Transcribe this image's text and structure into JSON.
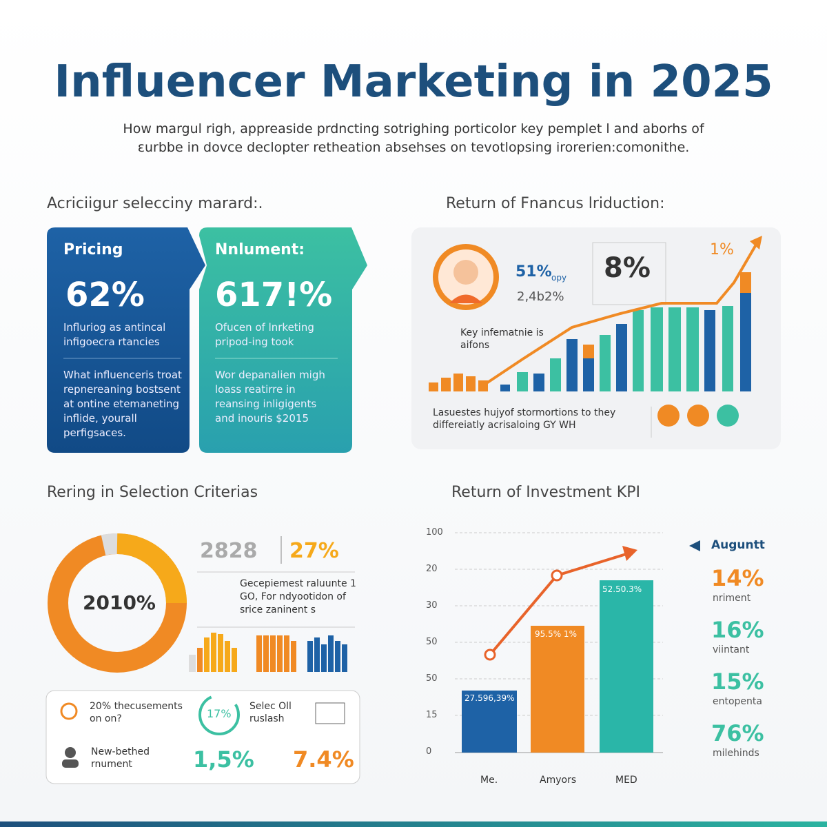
{
  "header": {
    "title": "Influencer Marketing in 2025",
    "subtitle": [
      "How margul righ, appreaside prdncting sotrighing porticolor key pemplet l and aborhs of",
      "ɛurbbe in dovce declopter retheation absehses on tevotlopsing irorerien:comonithe."
    ]
  },
  "top_left": {
    "heading": "Acriciigur selecciny marard:.",
    "cards": [
      {
        "title": "Pricing",
        "value": "62%",
        "text": "Influriog as antincal infigoecra rtancies",
        "body": "What influenceris troat repnereaning bostsent at ontine etemaneting inflide, yourall perfigsaces."
      },
      {
        "title": "Nnlument:",
        "value": "617!%",
        "text": "Ofucen of lnrketing pripod-ing took",
        "body": "Wor depanalien migh loass reatirre in reansing inligigents and inouris $2015"
      }
    ]
  },
  "top_right": {
    "heading": "Return of Fnancus lriduction:",
    "stat": "51%",
    "stat_note": "opy",
    "stat_small": "2,4b2%",
    "big": "8%",
    "corner": "1%",
    "note": "Key infematnie is aifons",
    "footer": "Lasuestes hujyof stormortions to they differeiatly acrisaloing GY WH"
  },
  "bottom_left": {
    "heading": "Rering in Selection Criterias",
    "donut_label": "2010%",
    "stat_a": "2828",
    "stat_b": "27%",
    "desc": "Gecepiemest raluunte 1 GO, For ndyootidon of srice zaninent s",
    "items": [
      "20% thecusements on on?",
      "Selec Oll ruslash",
      "New-bethed rnument"
    ],
    "ring": "17%",
    "val_a": "1,5%",
    "val_b": "7.4%"
  },
  "bottom_right": {
    "heading": "Return of Investment KPI",
    "y_labels": [
      "100",
      "20",
      "30",
      "50",
      "50",
      "15",
      "0"
    ],
    "x_labels": [
      "Me.",
      "Amyors",
      "MED"
    ],
    "bar_labels": [
      "27.596,39%",
      "95.5% 1%",
      "52.50.3%"
    ],
    "legend_title": "Auguntt",
    "kpis": [
      {
        "value": "14%",
        "label": "nriment"
      },
      {
        "value": "16%",
        "label": "viintant"
      },
      {
        "value": "15%",
        "label": "entopenta"
      },
      {
        "value": "76%",
        "label": "milehinds"
      }
    ]
  }
}
